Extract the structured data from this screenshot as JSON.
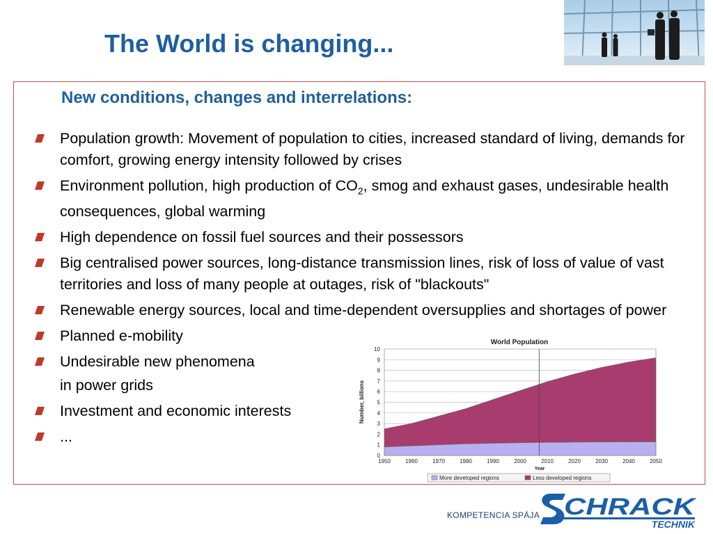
{
  "slide": {
    "title": "The World is changing...",
    "subtitle": "New conditions, changes and interrelations:"
  },
  "bullets": [
    {
      "text": "Population growth: Movement of population to cities, increased standard of living, demands for comfort, growing energy intensity followed by crises",
      "bullet": true
    },
    {
      "text_before": "Environment pollution, high production of CO",
      "sub": "2",
      "text_after": ", smog and exhaust gases, undesirable health consequences, global warming",
      "bullet": true
    },
    {
      "text": "High dependence on fossil fuel sources and their possessors",
      "bullet": true
    },
    {
      "text": "Big centralised power sources, long-distance transmission lines, risk of loss of value of vast territories and loss of many people at outages, risk of \"blackouts\"",
      "bullet": true
    },
    {
      "text": "Renewable energy sources, local and time-dependent oversupplies and shortages of power",
      "bullet": true
    },
    {
      "text": "Planned e-mobility",
      "bullet": true
    },
    {
      "text": "Undesirable new phenomena",
      "bullet": true
    },
    {
      "text": "in power grids",
      "bullet": false
    },
    {
      "text": "Investment and economic interests",
      "bullet": true
    },
    {
      "text": "...",
      "bullet": true
    }
  ],
  "footer": {
    "slogan": "KOMPETENCIA SPÁJA",
    "logo_word": "SCHRACK",
    "logo_sub": "TECHNIK"
  },
  "colors": {
    "title": "#1f5f9f",
    "border": "#c0504d",
    "bullet": "#c0392b",
    "more_developed": "#b8b0f0",
    "less_developed": "#a83c6e"
  },
  "icons": [
    "bullet-square-icon"
  ],
  "chart_data": {
    "type": "area",
    "title": "World Population",
    "xlabel": "Year",
    "ylabel": "Number, billions",
    "x": [
      1950,
      1960,
      1970,
      1980,
      1990,
      2000,
      2010,
      2020,
      2030,
      2040,
      2050
    ],
    "xlim": [
      1950,
      2050
    ],
    "ylim": [
      0,
      10
    ],
    "yticks": [
      0,
      1,
      2,
      3,
      4,
      5,
      6,
      7,
      8,
      9,
      10
    ],
    "stacked": true,
    "grid": true,
    "legend_position": "bottom",
    "series": [
      {
        "name": "More developed regions",
        "color": "#b8b0f0",
        "values": [
          0.8,
          0.9,
          1.0,
          1.1,
          1.15,
          1.2,
          1.23,
          1.25,
          1.27,
          1.28,
          1.28
        ]
      },
      {
        "name": "Less developed regions",
        "color": "#a83c6e",
        "values": [
          1.7,
          2.1,
          2.7,
          3.3,
          4.1,
          4.9,
          5.7,
          6.4,
          7.0,
          7.5,
          7.9
        ]
      }
    ]
  }
}
